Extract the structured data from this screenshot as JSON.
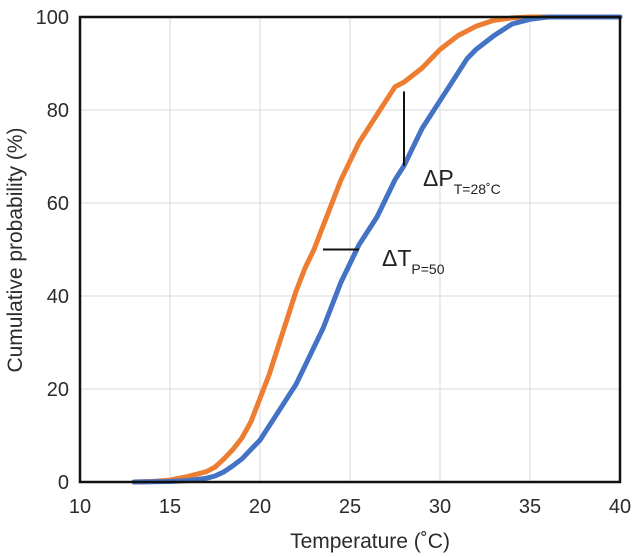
{
  "chart_data": {
    "type": "line",
    "xlabel": "Temperature (˚C)",
    "ylabel": "Cumulative probability (%)",
    "xlim": [
      10,
      40
    ],
    "ylim": [
      0,
      100
    ],
    "xticks": [
      "10",
      "15",
      "20",
      "25",
      "30",
      "35",
      "40"
    ],
    "yticks": [
      "0",
      "20",
      "40",
      "60",
      "80",
      "100"
    ],
    "grid": true,
    "series": [
      {
        "color": "#ED7D31",
        "x": [
          13,
          14,
          15,
          16,
          17,
          17.5,
          18,
          18.5,
          19,
          19.5,
          20,
          20.5,
          21,
          21.5,
          22,
          22.5,
          23,
          23.5,
          24,
          24.5,
          25,
          25.5,
          26,
          26.5,
          27,
          27.5,
          28,
          28.5,
          29,
          29.5,
          30,
          31,
          32,
          33,
          34,
          35,
          36,
          40
        ],
        "y": [
          0,
          0.1,
          0.4,
          1.2,
          2.2,
          3.2,
          5,
          7,
          9.5,
          13,
          18,
          23,
          29,
          35,
          41,
          46,
          50,
          55,
          60,
          65,
          69,
          73,
          76,
          79,
          82,
          85,
          86,
          87.5,
          89,
          91,
          93,
          96,
          98,
          99.3,
          99.8,
          100,
          100,
          100
        ]
      },
      {
        "color": "#4472C4",
        "x": [
          13,
          15,
          16,
          17,
          17.5,
          18,
          18.5,
          19,
          19.5,
          20,
          20.5,
          21,
          21.5,
          22,
          22.5,
          23,
          23.5,
          24,
          24.5,
          25,
          25.5,
          26,
          26.5,
          27,
          27.5,
          28,
          28.5,
          29,
          29.5,
          30,
          30.5,
          31,
          31.5,
          32,
          33,
          34,
          35,
          36,
          37,
          40
        ],
        "y": [
          0,
          0.1,
          0.3,
          0.8,
          1.3,
          2.2,
          3.5,
          5,
          7,
          9,
          12,
          15,
          18,
          21,
          25,
          29,
          33,
          38,
          43,
          47,
          51,
          54,
          57,
          61,
          65,
          68,
          72,
          76,
          79,
          82,
          85,
          88,
          91,
          93,
          96,
          98.5,
          99.5,
          100,
          100,
          100
        ]
      }
    ],
    "annotations": [
      {
        "main": "ΔP",
        "sub": "T=28˚C"
      },
      {
        "main": "ΔT",
        "sub": "P=50"
      }
    ]
  }
}
